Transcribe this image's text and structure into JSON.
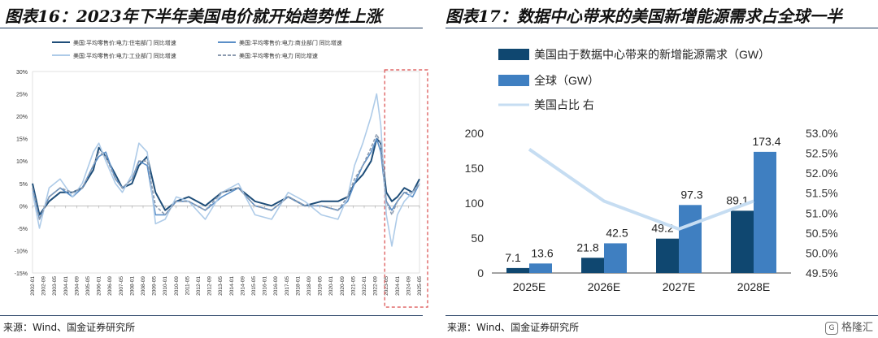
{
  "left": {
    "title": "图表16：2023年下半年美国电价就开始趋势性上涨",
    "source": "来源：Wind、国金证券研究所",
    "chart_data": {
      "type": "line",
      "title": "",
      "xlabel": "",
      "ylabel": "",
      "ylim": [
        -0.15,
        0.3
      ],
      "y_ticks": [
        "30%",
        "25%",
        "20%",
        "15%",
        "10%",
        "5%",
        "0%",
        "-5%",
        "-10%",
        "-15%"
      ],
      "x_ticks": [
        "2002-01",
        "2002-09",
        "2003-05",
        "2004-01",
        "2004-09",
        "2005-05",
        "2006-01",
        "2006-09",
        "2007-05",
        "2008-01",
        "2008-09",
        "2009-05",
        "2010-01",
        "2010-09",
        "2011-05",
        "2012-01",
        "2012-09",
        "2013-05",
        "2014-01",
        "2014-09",
        "2015-05",
        "2016-01",
        "2016-09",
        "2017-05",
        "2018-01",
        "2018-09",
        "2019-05",
        "2020-01",
        "2020-09",
        "2021-05",
        "2022-01",
        "2022-09",
        "2023-05",
        "2024-01",
        "2024-09",
        "2025-05"
      ],
      "x_range": [
        "2002-01",
        "2025-05"
      ],
      "highlight": {
        "x_from": "2023-05",
        "x_to": "2025-05",
        "style": "dashed-box",
        "color": "#d94b4b"
      },
      "series": [
        {
          "name": "美国:平均零售价:电力:住宅部门 同比增速",
          "color": "#1f4e79",
          "points": [
            [
              "2002-01",
              0.05
            ],
            [
              "2002-06",
              -0.02
            ],
            [
              "2003-01",
              0.01
            ],
            [
              "2003-09",
              0.03
            ],
            [
              "2004-06",
              0.03
            ],
            [
              "2005-01",
              0.04
            ],
            [
              "2005-09",
              0.08
            ],
            [
              "2006-01",
              0.13
            ],
            [
              "2006-06",
              0.11
            ],
            [
              "2007-01",
              0.07
            ],
            [
              "2007-06",
              0.04
            ],
            [
              "2008-01",
              0.05
            ],
            [
              "2008-06",
              0.09
            ],
            [
              "2008-12",
              0.11
            ],
            [
              "2009-06",
              0.03
            ],
            [
              "2010-01",
              -0.01
            ],
            [
              "2010-09",
              0.01
            ],
            [
              "2011-06",
              0.02
            ],
            [
              "2012-06",
              0.0
            ],
            [
              "2013-06",
              0.03
            ],
            [
              "2014-06",
              0.04
            ],
            [
              "2015-06",
              0.01
            ],
            [
              "2016-06",
              0.0
            ],
            [
              "2017-06",
              0.02
            ],
            [
              "2018-06",
              0.0
            ],
            [
              "2019-06",
              0.01
            ],
            [
              "2020-06",
              0.01
            ],
            [
              "2021-01",
              0.02
            ],
            [
              "2021-06",
              0.05
            ],
            [
              "2021-12",
              0.07
            ],
            [
              "2022-06",
              0.1
            ],
            [
              "2022-10",
              0.15
            ],
            [
              "2023-01",
              0.14
            ],
            [
              "2023-05",
              0.03
            ],
            [
              "2023-09",
              0.01
            ],
            [
              "2024-01",
              0.02
            ],
            [
              "2024-06",
              0.04
            ],
            [
              "2024-12",
              0.03
            ],
            [
              "2025-05",
              0.06
            ]
          ]
        },
        {
          "name": "美国:平均零售价:电力:商业部门 同比增速",
          "color": "#5b8fc7",
          "points": [
            [
              "2002-01",
              0.04
            ],
            [
              "2002-06",
              -0.03
            ],
            [
              "2003-01",
              0.02
            ],
            [
              "2003-09",
              0.04
            ],
            [
              "2004-06",
              0.02
            ],
            [
              "2005-01",
              0.04
            ],
            [
              "2005-09",
              0.09
            ],
            [
              "2006-01",
              0.11
            ],
            [
              "2006-06",
              0.12
            ],
            [
              "2007-01",
              0.06
            ],
            [
              "2007-06",
              0.04
            ],
            [
              "2008-01",
              0.06
            ],
            [
              "2008-06",
              0.1
            ],
            [
              "2008-12",
              0.09
            ],
            [
              "2009-06",
              -0.02
            ],
            [
              "2010-01",
              -0.02
            ],
            [
              "2010-09",
              0.01
            ],
            [
              "2011-06",
              0.01
            ],
            [
              "2012-06",
              -0.01
            ],
            [
              "2013-06",
              0.02
            ],
            [
              "2014-06",
              0.04
            ],
            [
              "2015-06",
              0.0
            ],
            [
              "2016-06",
              -0.01
            ],
            [
              "2017-06",
              0.02
            ],
            [
              "2018-06",
              0.0
            ],
            [
              "2019-06",
              0.0
            ],
            [
              "2020-06",
              -0.01
            ],
            [
              "2021-01",
              0.01
            ],
            [
              "2021-06",
              0.05
            ],
            [
              "2021-12",
              0.09
            ],
            [
              "2022-06",
              0.12
            ],
            [
              "2022-10",
              0.15
            ],
            [
              "2023-01",
              0.12
            ],
            [
              "2023-05",
              0.01
            ],
            [
              "2023-09",
              -0.01
            ],
            [
              "2024-01",
              0.01
            ],
            [
              "2024-06",
              0.03
            ],
            [
              "2024-12",
              0.02
            ],
            [
              "2025-05",
              0.05
            ]
          ]
        },
        {
          "name": "美国:平均零售价:电力:工业部门 同比增速",
          "color": "#aecbe8",
          "points": [
            [
              "2002-01",
              0.03
            ],
            [
              "2002-06",
              -0.05
            ],
            [
              "2003-01",
              0.04
            ],
            [
              "2003-09",
              0.06
            ],
            [
              "2004-06",
              0.02
            ],
            [
              "2005-01",
              0.05
            ],
            [
              "2005-09",
              0.12
            ],
            [
              "2006-01",
              0.14
            ],
            [
              "2006-06",
              0.1
            ],
            [
              "2007-01",
              0.05
            ],
            [
              "2007-06",
              0.03
            ],
            [
              "2008-01",
              0.07
            ],
            [
              "2008-06",
              0.14
            ],
            [
              "2008-12",
              0.12
            ],
            [
              "2009-06",
              -0.04
            ],
            [
              "2010-01",
              -0.03
            ],
            [
              "2010-09",
              0.02
            ],
            [
              "2011-06",
              0.01
            ],
            [
              "2012-06",
              -0.03
            ],
            [
              "2013-06",
              0.03
            ],
            [
              "2014-06",
              0.05
            ],
            [
              "2015-06",
              -0.02
            ],
            [
              "2016-06",
              -0.03
            ],
            [
              "2017-06",
              0.03
            ],
            [
              "2018-06",
              0.01
            ],
            [
              "2019-06",
              -0.02
            ],
            [
              "2020-06",
              -0.03
            ],
            [
              "2021-01",
              0.02
            ],
            [
              "2021-06",
              0.09
            ],
            [
              "2021-12",
              0.14
            ],
            [
              "2022-06",
              0.2
            ],
            [
              "2022-10",
              0.25
            ],
            [
              "2023-01",
              0.18
            ],
            [
              "2023-05",
              -0.02
            ],
            [
              "2023-09",
              -0.09
            ],
            [
              "2024-01",
              -0.02
            ],
            [
              "2024-06",
              0.01
            ],
            [
              "2024-12",
              0.03
            ],
            [
              "2025-05",
              0.05
            ]
          ]
        },
        {
          "name": "美国:平均零售价:电力 同比增速",
          "color": "#8c9bb0",
          "dashed": true,
          "points": [
            [
              "2002-01",
              0.04
            ],
            [
              "2002-06",
              -0.03
            ],
            [
              "2003-01",
              0.02
            ],
            [
              "2003-09",
              0.04
            ],
            [
              "2004-06",
              0.03
            ],
            [
              "2005-01",
              0.04
            ],
            [
              "2005-09",
              0.09
            ],
            [
              "2006-01",
              0.12
            ],
            [
              "2006-06",
              0.11
            ],
            [
              "2007-01",
              0.06
            ],
            [
              "2007-06",
              0.04
            ],
            [
              "2008-01",
              0.06
            ],
            [
              "2008-06",
              0.1
            ],
            [
              "2008-12",
              0.1
            ],
            [
              "2009-06",
              0.0
            ],
            [
              "2010-01",
              -0.02
            ],
            [
              "2010-09",
              0.01
            ],
            [
              "2011-06",
              0.01
            ],
            [
              "2012-06",
              -0.01
            ],
            [
              "2013-06",
              0.03
            ],
            [
              "2014-06",
              0.04
            ],
            [
              "2015-06",
              0.0
            ],
            [
              "2016-06",
              -0.01
            ],
            [
              "2017-06",
              0.02
            ],
            [
              "2018-06",
              0.0
            ],
            [
              "2019-06",
              0.0
            ],
            [
              "2020-06",
              -0.01
            ],
            [
              "2021-01",
              0.02
            ],
            [
              "2021-06",
              0.06
            ],
            [
              "2021-12",
              0.09
            ],
            [
              "2022-06",
              0.13
            ],
            [
              "2022-10",
              0.16
            ],
            [
              "2023-01",
              0.14
            ],
            [
              "2023-05",
              0.01
            ],
            [
              "2023-09",
              -0.02
            ],
            [
              "2024-01",
              0.01
            ],
            [
              "2024-06",
              0.03
            ],
            [
              "2024-12",
              0.03
            ],
            [
              "2025-05",
              0.05
            ]
          ]
        }
      ],
      "legend_position": "top-left"
    }
  },
  "right": {
    "title": "图表17：数据中心带来的美国新增能源需求占全球一半",
    "source": "来源：Wind、国金证券研究所",
    "chart_data": {
      "type": "bar",
      "title": "",
      "categories": [
        "2025E",
        "2026E",
        "2027E",
        "2028E"
      ],
      "series": [
        {
          "name": "美国由于数据中心带来的新增能源需求（GW）",
          "color": "#0f4770",
          "values": [
            7.1,
            21.8,
            49.2,
            89.1
          ],
          "labels": [
            "7.1",
            "21.8",
            "49.2",
            "89.1"
          ]
        },
        {
          "name": "全球（GW）",
          "color": "#3f7fc1",
          "values": [
            13.6,
            42.5,
            97.3,
            173.4
          ],
          "labels": [
            "13.6",
            "42.5",
            "97.3",
            "173.4"
          ]
        },
        {
          "name": "美国占比 右",
          "type": "line",
          "axis": "right",
          "color": "#c6ddf2",
          "values": [
            52.6,
            51.3,
            50.6,
            51.3
          ]
        }
      ],
      "ylim": [
        0,
        200
      ],
      "y_ticks": [
        "0",
        "50",
        "100",
        "150",
        "200"
      ],
      "y2lim": [
        49.5,
        53.0
      ],
      "y2_ticks": [
        "49.5%",
        "50.0%",
        "50.5%",
        "51.0%",
        "51.5%",
        "52.0%",
        "52.5%",
        "53.0%"
      ],
      "legend_position": "top-left"
    }
  },
  "watermark": "格隆汇"
}
